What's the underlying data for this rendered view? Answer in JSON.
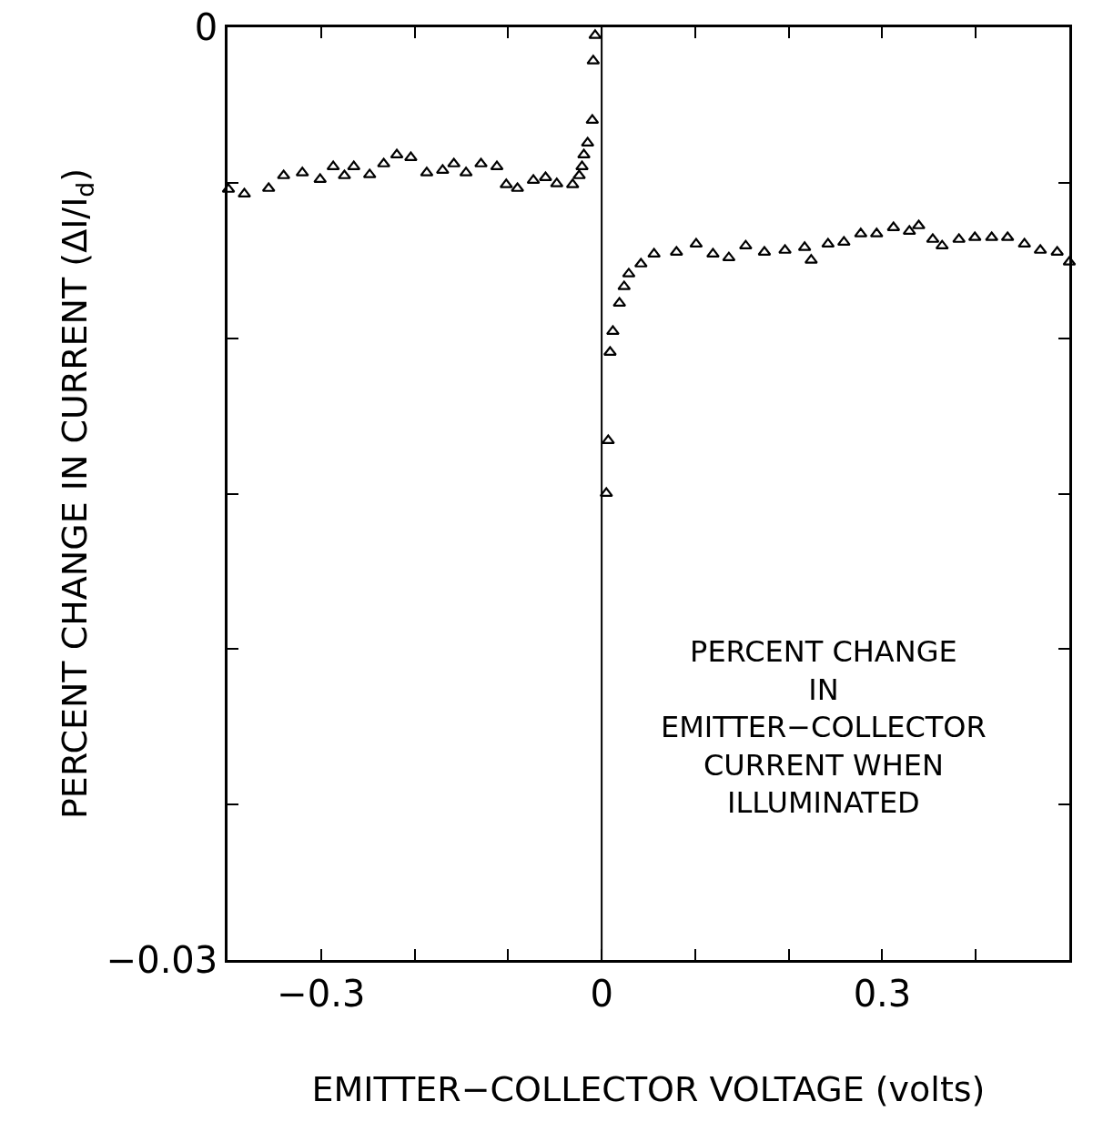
{
  "chart_data": {
    "type": "scatter",
    "xlabel": "EMITTER−COLLECTOR VOLTAGE (volts)",
    "ylabel": "PERCENT CHANGE IN CURRENT (ΔI/I$_{d}$)",
    "annotations": [
      "PERCENT CHANGE\nIN\nEMITTER−COLLECTOR\nCURRENT WHEN\nILLUMINATED"
    ],
    "series": [
      {
        "color": "#000000",
        "x": [
          -0.399,
          -0.382,
          -0.356,
          -0.34,
          -0.32,
          -0.301,
          -0.287,
          -0.275,
          -0.265,
          -0.248,
          -0.233,
          -0.219,
          -0.204,
          -0.187,
          -0.17,
          -0.158,
          -0.145,
          -0.129,
          -0.112,
          -0.102,
          -0.09,
          -0.073,
          -0.06,
          -0.048,
          -0.031,
          -0.024,
          -0.021,
          -0.019,
          -0.015,
          -0.01,
          -0.009,
          -0.007,
          0.005,
          0.007,
          0.009,
          0.012,
          0.019,
          0.024,
          0.029,
          0.042,
          0.056,
          0.08,
          0.101,
          0.119,
          0.136,
          0.154,
          0.174,
          0.196,
          0.217,
          0.224,
          0.242,
          0.259,
          0.277,
          0.294,
          0.312,
          0.329,
          0.339,
          0.354,
          0.364,
          0.382,
          0.399,
          0.417,
          0.434,
          0.452,
          0.469,
          0.487,
          0.5
        ],
        "values": [
          -0.00521,
          -0.00536,
          -0.00518,
          -0.00477,
          -0.00468,
          -0.00489,
          -0.00448,
          -0.00477,
          -0.00448,
          -0.00474,
          -0.00439,
          -0.0041,
          -0.00419,
          -0.00468,
          -0.0046,
          -0.00439,
          -0.00468,
          -0.00439,
          -0.00448,
          -0.00506,
          -0.00518,
          -0.00492,
          -0.00483,
          -0.00503,
          -0.00506,
          -0.00477,
          -0.00448,
          -0.0041,
          -0.00372,
          -0.00299,
          -0.00108,
          -0.00026,
          -0.01499,
          -0.01329,
          -0.01045,
          -0.00978,
          -0.00887,
          -0.00834,
          -0.00793,
          -0.00761,
          -0.00729,
          -0.00723,
          -0.00697,
          -0.00729,
          -0.00741,
          -0.00703,
          -0.00723,
          -0.00717,
          -0.00708,
          -0.00749,
          -0.00697,
          -0.00691,
          -0.00664,
          -0.00664,
          -0.00644,
          -0.00656,
          -0.00638,
          -0.00682,
          -0.00703,
          -0.00682,
          -0.00676,
          -0.00676,
          -0.00676,
          -0.00697,
          -0.00717,
          -0.00723,
          -0.00755
        ]
      }
    ],
    "marker": "triangle",
    "xlim": [
      -0.4,
      0.5
    ],
    "xticks": [
      {
        "value": -0.3,
        "label": "−0.3"
      },
      {
        "value": -0.2,
        "label": null
      },
      {
        "value": -0.1,
        "label": null
      },
      0,
      {
        "value": 0.1,
        "label": null
      },
      {
        "value": 0.2,
        "label": null
      },
      0.3,
      {
        "value": 0.4,
        "label": null
      }
    ],
    "ylim": [
      -0.03,
      0
    ],
    "yticks": [
      {
        "value": -0.03,
        "label": "−0.03"
      },
      {
        "value": -0.025,
        "label": null
      },
      {
        "value": -0.02,
        "label": null
      },
      {
        "value": -0.015,
        "label": null
      },
      {
        "value": -0.01,
        "label": null
      },
      {
        "value": -0.005,
        "label": null
      },
      0
    ],
    "ref_lines": [
      {
        "axis": "x",
        "value": 0,
        "color": "#000000"
      }
    ],
    "grid": false
  }
}
